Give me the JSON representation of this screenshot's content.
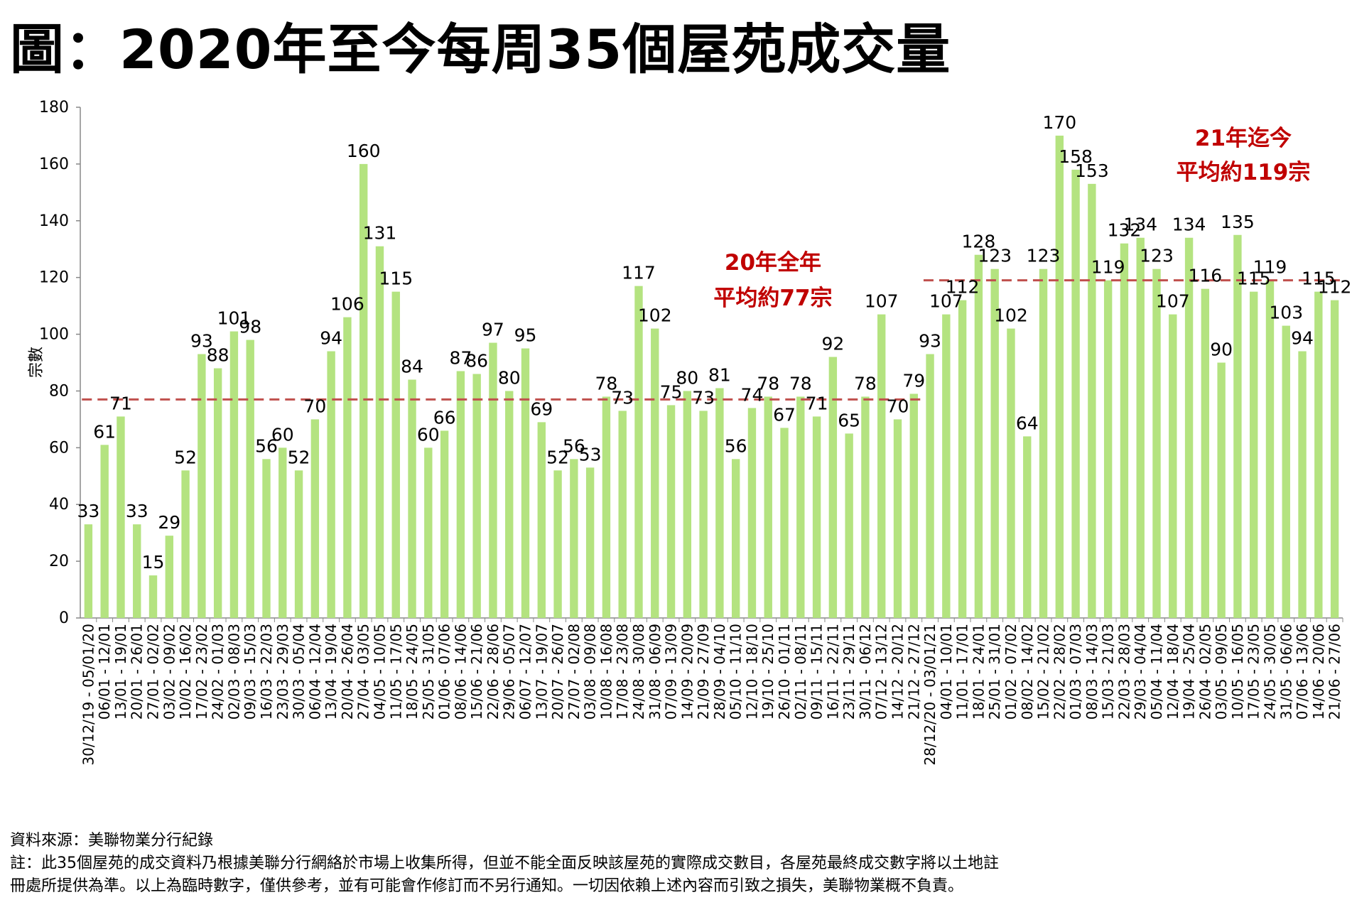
{
  "title": "圖：2020年至今每周35個屋苑成交量",
  "footer": {
    "source": "資料來源：美聯物業分行紀錄",
    "note_line1": "註：此35個屋苑的成交資料乃根據美聯分行網絡於市場上收集所得，但並不能全面反映該屋苑的實際成交數目，各屋苑最終成交數字將以土地註",
    "note_line2": "冊處所提供為準。以上為臨時數字，僅供參考，並有可能會作修訂而不另行通知。一切因依賴上述內容而引致之損失，美聯物業概不負責。"
  },
  "chart_data": {
    "type": "bar",
    "title": "圖：2020年至今每周35個屋苑成交量",
    "xlabel": "",
    "ylabel": "宗數",
    "ylim": [
      0,
      180
    ],
    "yticks": [
      0,
      20,
      40,
      60,
      80,
      100,
      120,
      140,
      160,
      180
    ],
    "bar_color": "#b4e380",
    "avg_line_color": "#c0504d",
    "annotation_color": "#c00000",
    "categories": [
      "30/12/19 - 05/01/20",
      "06/01 - 12/01",
      "13/01 - 19/01",
      "20/01 - 26/01",
      "27/01 - 02/02",
      "03/02 - 09/02",
      "10/02 - 16/02",
      "17/02 - 23/02",
      "24/02 - 01/03",
      "02/03 - 08/03",
      "09/03 - 15/03",
      "16/03 - 22/03",
      "23/03 - 29/03",
      "30/03 - 05/04",
      "06/04 - 12/04",
      "13/04 - 19/04",
      "20/04 - 26/04",
      "27/04 - 03/05",
      "04/05 - 10/05",
      "11/05 - 17/05",
      "18/05 - 24/05",
      "25/05 - 31/05",
      "01/06 - 07/06",
      "08/06 - 14/06",
      "15/06 - 21/06",
      "22/06 - 28/06",
      "29/06 - 05/07",
      "06/07 - 12/07",
      "13/07 - 19/07",
      "20/07 - 26/07",
      "27/07 - 02/08",
      "03/08 - 09/08",
      "10/08 - 16/08",
      "17/08 - 23/08",
      "24/08 - 30/08",
      "31/08 - 06/09",
      "07/09 - 13/09",
      "14/09 - 20/09",
      "21/09 - 27/09",
      "28/09 - 04/10",
      "05/10 - 11/10",
      "12/10 - 18/10",
      "19/10 - 25/10",
      "26/10 - 01/11",
      "02/11 - 08/11",
      "09/11 - 15/11",
      "16/11 - 22/11",
      "23/11 - 29/11",
      "30/11 - 06/12",
      "07/12 - 13/12",
      "14/12 - 20/12",
      "21/12 - 27/12",
      "28/12/20 - 03/01/21",
      "04/01 - 10/01",
      "11/01 - 17/01",
      "18/01 - 24/01",
      "25/01 - 31/01",
      "01/02 - 07/02",
      "08/02 - 14/02",
      "15/02 - 21/02",
      "22/02 - 28/02",
      "01/03 - 07/03",
      "08/03 - 14/03",
      "15/03 - 21/03",
      "22/03 - 28/03",
      "29/03 - 04/04",
      "05/04 - 11/04",
      "12/04 - 18/04",
      "19/04 - 25/04",
      "26/04 - 02/05",
      "03/05 - 09/05",
      "10/05 - 16/05",
      "17/05 - 23/05",
      "24/05 - 30/05",
      "31/05 - 06/06",
      "07/06 - 13/06",
      "14/06 - 20/06",
      "21/06 - 27/06"
    ],
    "values": [
      33,
      61,
      71,
      33,
      15,
      29,
      52,
      93,
      88,
      101,
      98,
      56,
      60,
      52,
      70,
      94,
      106,
      160,
      131,
      115,
      84,
      60,
      66,
      87,
      86,
      97,
      80,
      95,
      69,
      52,
      56,
      53,
      78,
      73,
      117,
      102,
      75,
      80,
      73,
      81,
      56,
      74,
      78,
      67,
      78,
      71,
      92,
      65,
      78,
      107,
      70,
      79,
      93,
      107,
      112,
      128,
      123,
      102,
      64,
      123,
      170,
      158,
      153,
      119,
      132,
      134,
      123,
      107,
      134,
      116,
      90,
      135,
      115,
      119,
      103,
      94,
      115,
      112
    ],
    "averages": [
      {
        "label_line1": "20年全年",
        "label_line2": "平均約77宗",
        "value": 77,
        "from_index": 0,
        "to_index": 51
      },
      {
        "label_line1": "21年迄今",
        "label_line2": "平均約119宗",
        "value": 119,
        "from_index": 52,
        "to_index": 77
      }
    ]
  }
}
